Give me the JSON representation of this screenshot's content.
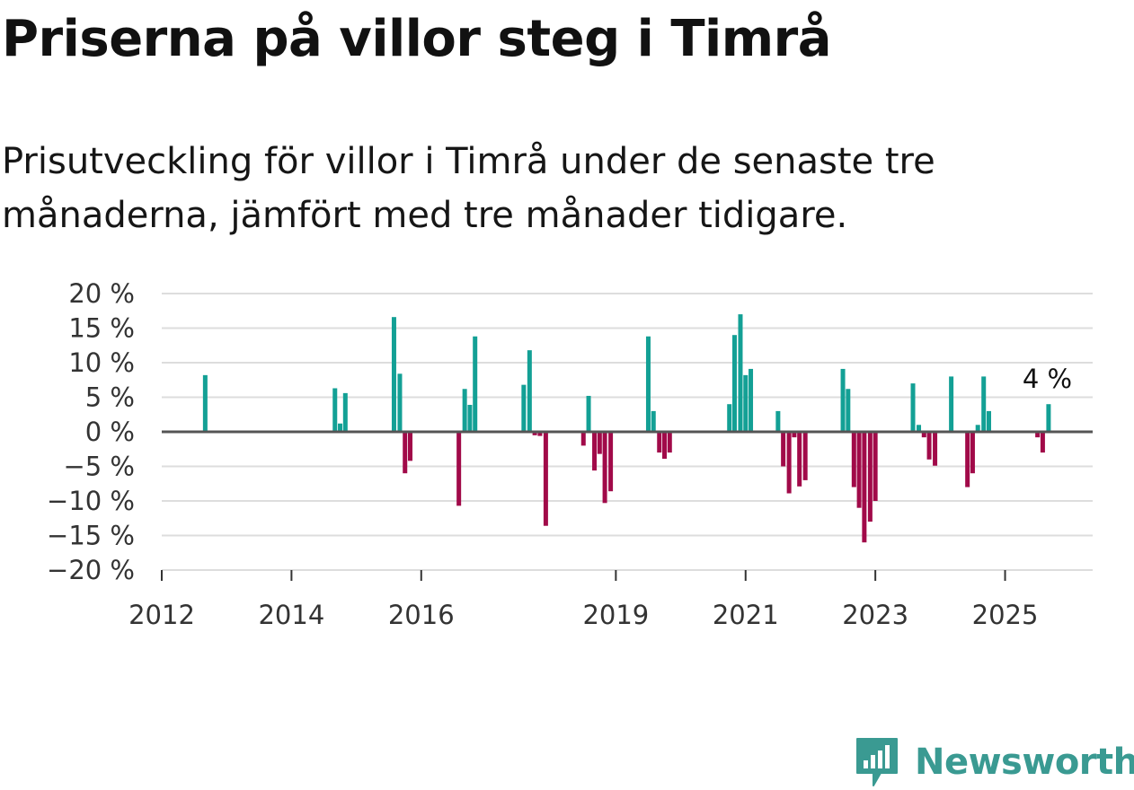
{
  "title": "Priserna på villor steg i Timrå",
  "subtitle": "Prisutveckling för villor i Timrå under de senaste tre månaderna, jämfört med tre månader tidigare.",
  "colors": {
    "positive": "#13a095",
    "negative": "#a10a49",
    "zero_line": "#555555",
    "grid": "#dddddd",
    "brand": "#3a9a92"
  },
  "brand": {
    "name": "Newsworthy",
    "icon": "newsworthy-logo-icon"
  },
  "chart_data": {
    "type": "bar",
    "title": "",
    "xlabel": "",
    "ylabel": "",
    "ylim": [
      -20,
      20
    ],
    "xlim": [
      2012.0,
      2026.35
    ],
    "y_ticks": [
      20,
      15,
      10,
      5,
      0,
      -5,
      -10,
      -15,
      -20
    ],
    "y_tick_labels": [
      "20 %",
      "15 %",
      "10 %",
      "5 %",
      "0 %",
      "−5 %",
      "−10 %",
      "−15 %",
      "−20 %"
    ],
    "x_ticks": [
      {
        "value": 2012,
        "label": "2012"
      },
      {
        "value": 2014,
        "label": "2014"
      },
      {
        "value": 2016,
        "label": "2016"
      },
      {
        "value": 2019,
        "label": "2019"
      },
      {
        "value": 2021,
        "label": "2021"
      },
      {
        "value": 2023,
        "label": "2023"
      },
      {
        "value": 2025,
        "label": "2025"
      }
    ],
    "annotation": {
      "x": 2025.65,
      "y": 4,
      "label": "4 %"
    },
    "points": [
      {
        "x": 2012.67,
        "y": 8.2
      },
      {
        "x": 2014.67,
        "y": 6.3
      },
      {
        "x": 2014.75,
        "y": 1.2
      },
      {
        "x": 2014.83,
        "y": 5.6
      },
      {
        "x": 2015.58,
        "y": 16.6
      },
      {
        "x": 2015.67,
        "y": 8.4
      },
      {
        "x": 2015.75,
        "y": -6.0
      },
      {
        "x": 2015.83,
        "y": -4.2
      },
      {
        "x": 2016.58,
        "y": -10.7
      },
      {
        "x": 2016.67,
        "y": 6.2
      },
      {
        "x": 2016.75,
        "y": 3.9
      },
      {
        "x": 2016.83,
        "y": 13.8
      },
      {
        "x": 2017.58,
        "y": 6.8
      },
      {
        "x": 2017.67,
        "y": 11.8
      },
      {
        "x": 2017.75,
        "y": -0.5
      },
      {
        "x": 2017.83,
        "y": -0.6
      },
      {
        "x": 2017.92,
        "y": -13.6
      },
      {
        "x": 2018.5,
        "y": -2.0
      },
      {
        "x": 2018.58,
        "y": 5.2
      },
      {
        "x": 2018.67,
        "y": -5.6
      },
      {
        "x": 2018.75,
        "y": -3.2
      },
      {
        "x": 2018.83,
        "y": -10.3
      },
      {
        "x": 2018.92,
        "y": -8.6
      },
      {
        "x": 2019.5,
        "y": 13.8
      },
      {
        "x": 2019.58,
        "y": 3.0
      },
      {
        "x": 2019.67,
        "y": -3.0
      },
      {
        "x": 2019.75,
        "y": -3.9
      },
      {
        "x": 2019.83,
        "y": -3.0
      },
      {
        "x": 2020.75,
        "y": 4.0
      },
      {
        "x": 2020.83,
        "y": 14.0
      },
      {
        "x": 2020.92,
        "y": 17.0
      },
      {
        "x": 2021.0,
        "y": 8.2
      },
      {
        "x": 2021.08,
        "y": 9.1
      },
      {
        "x": 2021.5,
        "y": 3.0
      },
      {
        "x": 2021.58,
        "y": -5.0
      },
      {
        "x": 2021.67,
        "y": -8.9
      },
      {
        "x": 2021.75,
        "y": -0.8
      },
      {
        "x": 2021.83,
        "y": -7.9
      },
      {
        "x": 2021.92,
        "y": -7.0
      },
      {
        "x": 2022.5,
        "y": 9.1
      },
      {
        "x": 2022.58,
        "y": 6.2
      },
      {
        "x": 2022.67,
        "y": -8.0
      },
      {
        "x": 2022.75,
        "y": -11.0
      },
      {
        "x": 2022.83,
        "y": -16.0
      },
      {
        "x": 2022.92,
        "y": -13.0
      },
      {
        "x": 2023.0,
        "y": -10.0
      },
      {
        "x": 2023.58,
        "y": 7.0
      },
      {
        "x": 2023.67,
        "y": 1.0
      },
      {
        "x": 2023.75,
        "y": -0.8
      },
      {
        "x": 2023.83,
        "y": -4.0
      },
      {
        "x": 2023.92,
        "y": -4.9
      },
      {
        "x": 2024.17,
        "y": 8.0
      },
      {
        "x": 2024.42,
        "y": -8.0
      },
      {
        "x": 2024.5,
        "y": -6.0
      },
      {
        "x": 2024.58,
        "y": 1.0
      },
      {
        "x": 2024.67,
        "y": 8.0
      },
      {
        "x": 2024.75,
        "y": 3.0
      },
      {
        "x": 2025.5,
        "y": -0.8
      },
      {
        "x": 2025.58,
        "y": -3.0
      },
      {
        "x": 2025.67,
        "y": 4.0
      }
    ]
  }
}
